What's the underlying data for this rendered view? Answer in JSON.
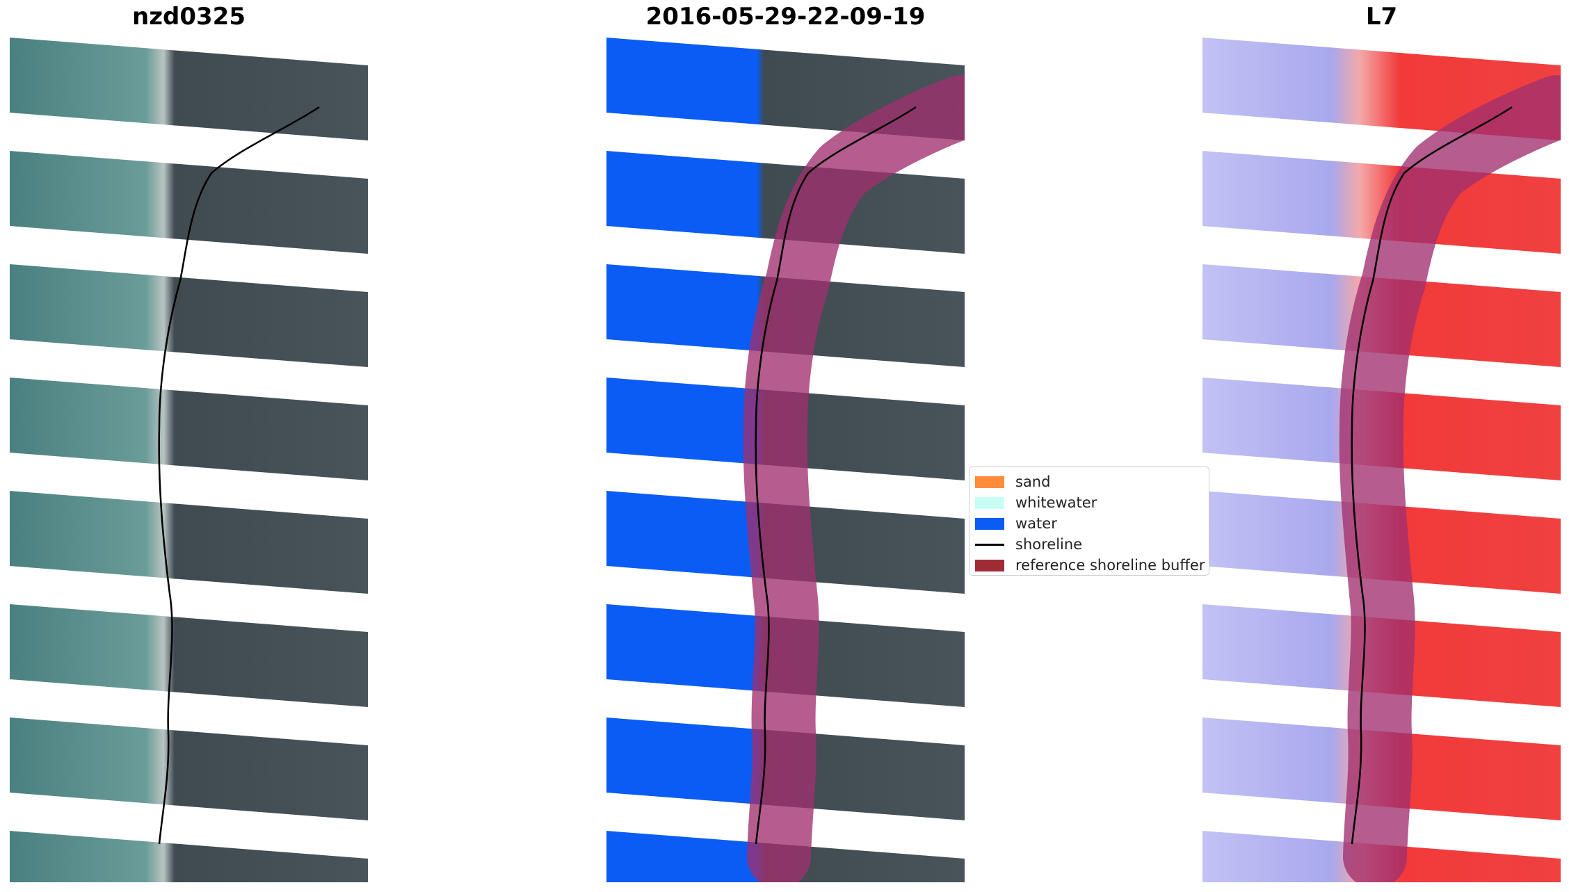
{
  "panels": [
    {
      "title": "nzd0325"
    },
    {
      "title": "2016-05-29-22-09-19"
    },
    {
      "title": "L7"
    }
  ],
  "legend": {
    "items": [
      {
        "label": "sand",
        "color": "#ff8c3a",
        "kind": "patch"
      },
      {
        "label": "whitewater",
        "color": "#c8fff5",
        "kind": "patch"
      },
      {
        "label": "water",
        "color": "#0a5cf5",
        "kind": "patch"
      },
      {
        "label": "shoreline",
        "color": "#000000",
        "kind": "line"
      },
      {
        "label": "reference shoreline buffer",
        "color": "#9e2b36",
        "kind": "patch"
      }
    ]
  },
  "colors": {
    "sea_rgb": "#4f8585",
    "land_rgb": "#3e4a4f",
    "water_class": "#0a5cf5",
    "index_water": "#b8b8f5",
    "index_land": "#f23535",
    "buffer": "#a0306e"
  }
}
